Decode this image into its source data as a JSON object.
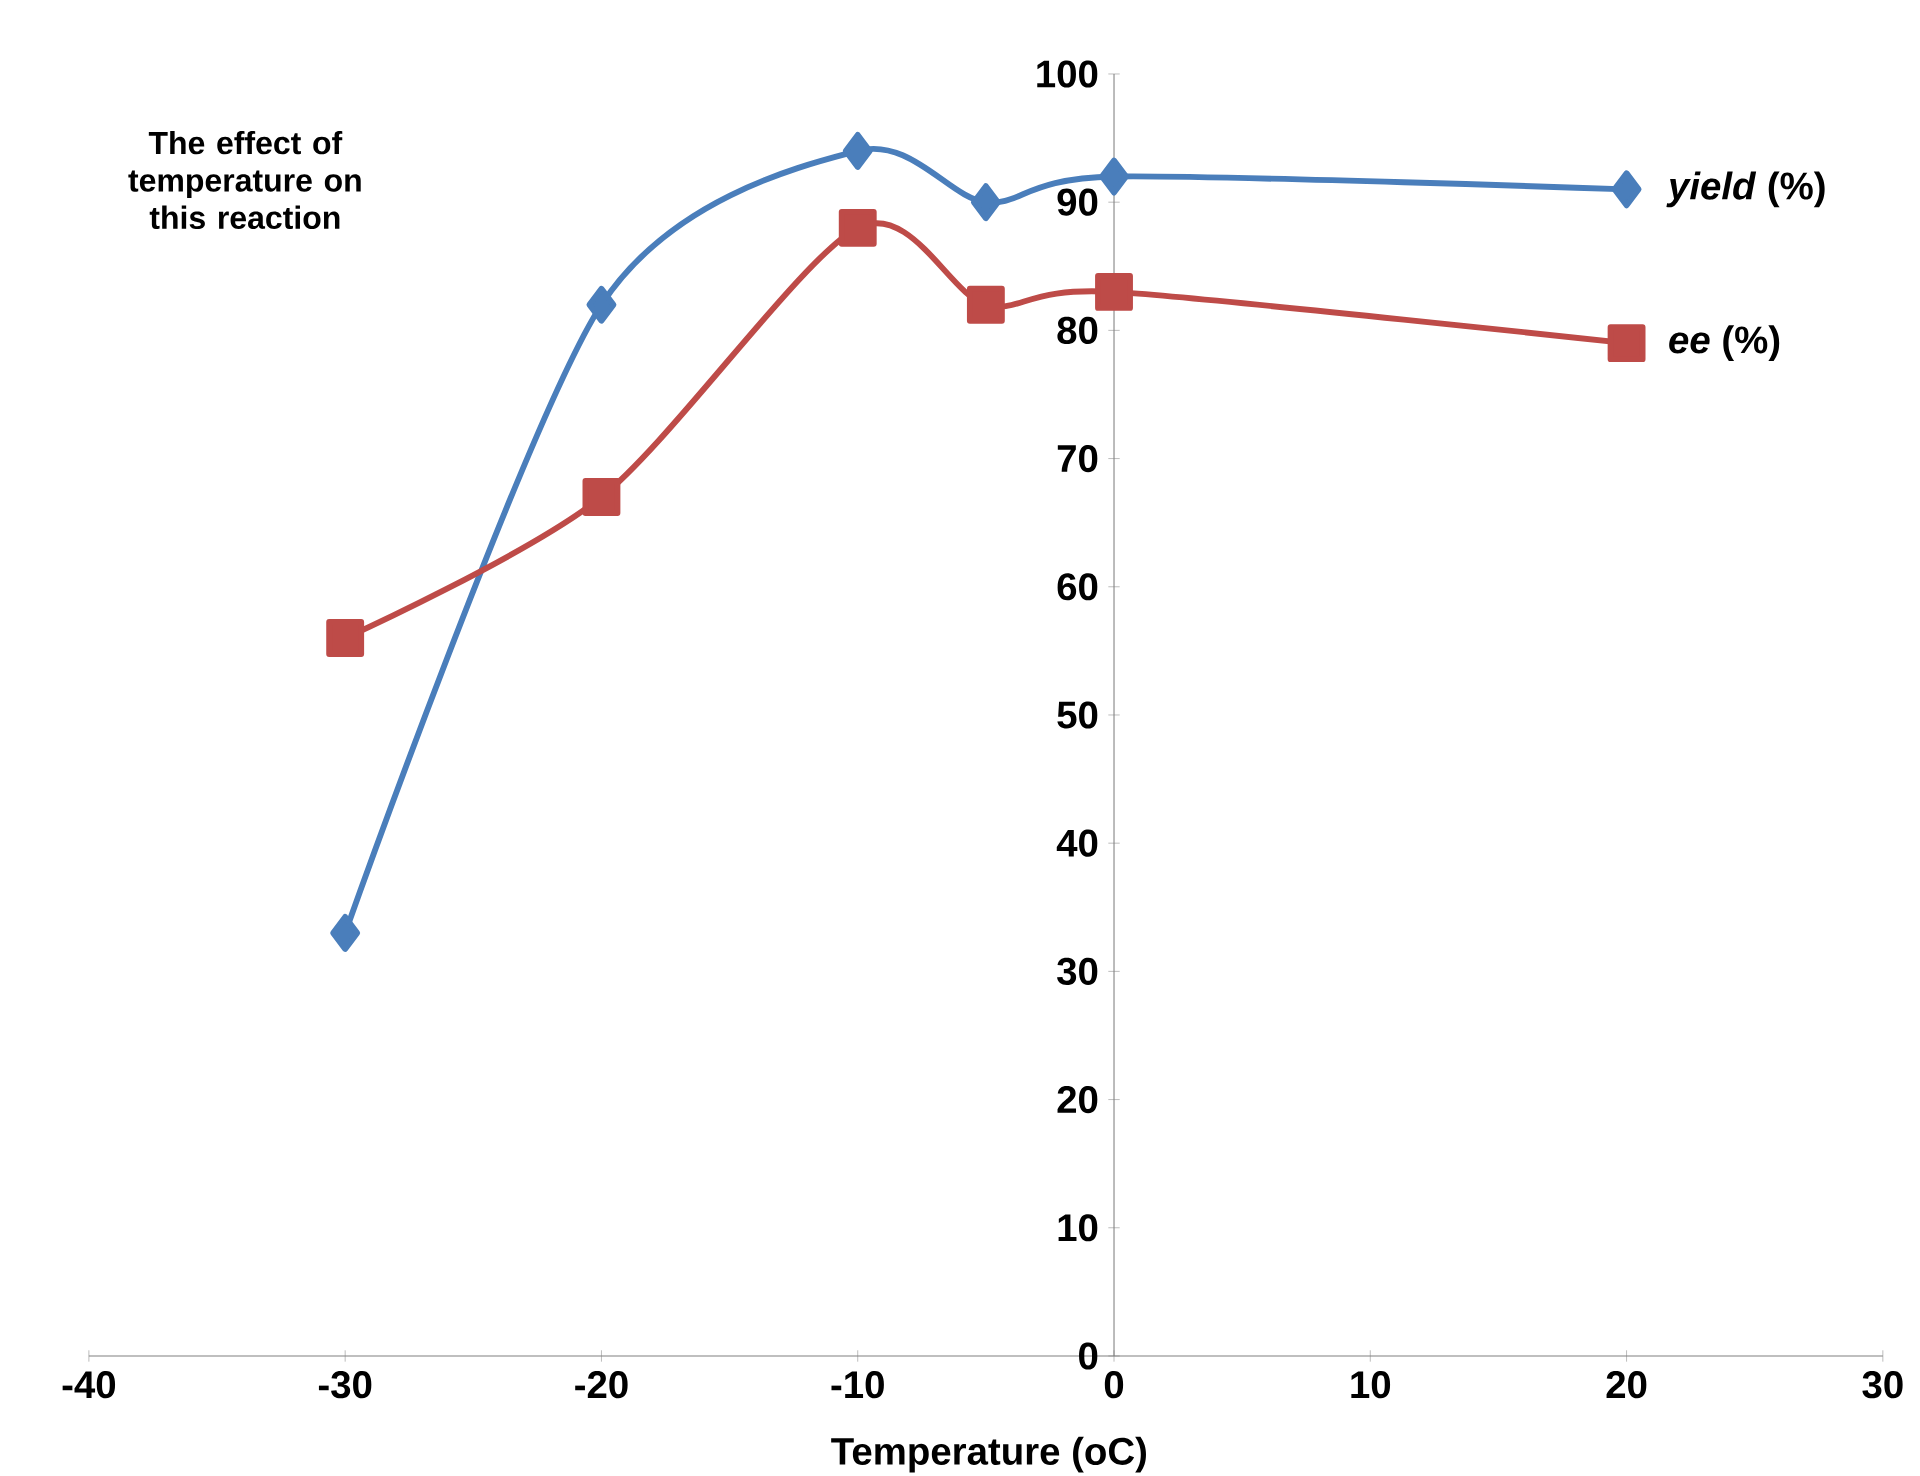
{
  "chart_data": {
    "type": "line",
    "xlabel": "Temperature (oC)",
    "annotations": [
      "The effect of temperature on this reaction"
    ],
    "x": [
      -30,
      -20,
      -10,
      -5,
      0,
      20
    ],
    "series": [
      {
        "name": "*yield* (%)",
        "color": "#4a7ebb",
        "marker": "diamond",
        "values": [
          33,
          82,
          94,
          90,
          92,
          91
        ]
      },
      {
        "name": "*ee* (%)",
        "color": "#be4b48",
        "marker": "square",
        "values": [
          56,
          67,
          88,
          82,
          83,
          79
        ]
      }
    ],
    "xlim": [
      -40,
      30
    ],
    "xticks": [
      -40,
      -30,
      -20,
      -10,
      0,
      10,
      20,
      30
    ],
    "ylim": [
      0,
      100
    ],
    "yticks": [
      0,
      10,
      20,
      30,
      40,
      50,
      60,
      70,
      80,
      90,
      100
    ],
    "grid": false,
    "legend": false
  }
}
